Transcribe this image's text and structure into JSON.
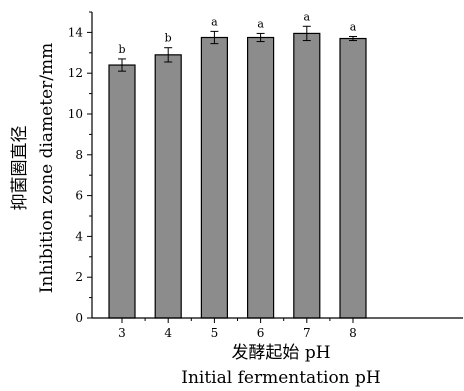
{
  "chart_data": {
    "type": "bar",
    "categories": [
      "3",
      "4",
      "5",
      "6",
      "7",
      "8"
    ],
    "values": [
      12.4,
      12.9,
      13.75,
      13.75,
      13.95,
      13.7
    ],
    "errors": [
      0.3,
      0.35,
      0.3,
      0.2,
      0.35,
      0.1
    ],
    "significance_labels": [
      "b",
      "b",
      "a",
      "a",
      "a",
      "a"
    ],
    "xlabel_cn": "发酵起始 pH",
    "xlabel_en": "Initial fermentation pH",
    "ylabel_cn": "抑菌圈直径",
    "ylabel_en": "Inhibition zone diameter/mm",
    "ylim": [
      0,
      15
    ],
    "yticks": [
      0,
      2,
      4,
      6,
      8,
      10,
      12,
      14
    ],
    "bar_color": "#8c8c8c",
    "bar_edge_color": "#000000",
    "grid": false
  }
}
